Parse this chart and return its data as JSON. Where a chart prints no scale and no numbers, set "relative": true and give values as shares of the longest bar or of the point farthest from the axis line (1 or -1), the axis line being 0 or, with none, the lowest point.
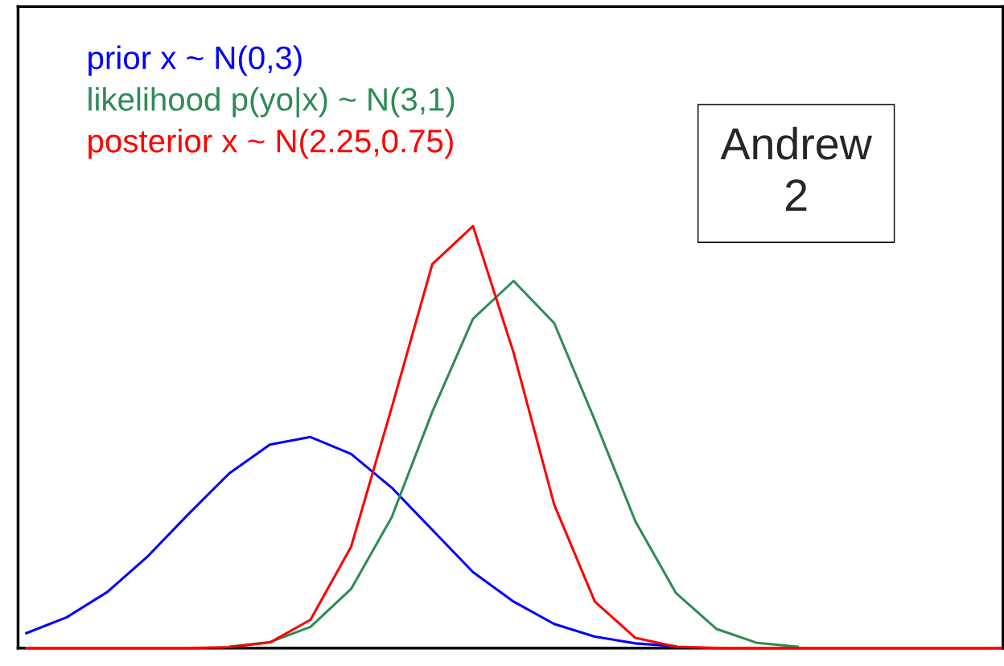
{
  "chart_data": {
    "type": "line",
    "relative": true,
    "legend": "top left",
    "marker": "none",
    "line_style": "solid",
    "categories": [
      null,
      null,
      null,
      null,
      null,
      null,
      null,
      null,
      null,
      null,
      null,
      null,
      null,
      null,
      null,
      null,
      null,
      null,
      null,
      null,
      null,
      null,
      null,
      null,
      null
    ],
    "series": [
      {
        "name": "prior x ~ N(0,3)",
        "color": "#0000ff",
        "values": [
          0.035,
          0.073,
          0.133,
          0.218,
          0.318,
          0.414,
          0.482,
          0.5,
          0.46,
          0.38,
          0.28,
          0.18,
          0.11,
          0.057,
          0.027,
          0.011,
          0.004,
          null,
          null,
          null,
          null,
          null,
          null,
          null,
          null
        ]
      },
      {
        "name": "likelihood p(yo|x) ~ N(3,1)",
        "color": "#2e8b57",
        "values": [
          null,
          null,
          null,
          null,
          null,
          0.003,
          0.014,
          0.05,
          0.14,
          0.31,
          0.56,
          0.78,
          0.87,
          0.77,
          0.54,
          0.3,
          0.13,
          0.045,
          0.012,
          0.003,
          null,
          null,
          null,
          null,
          null
        ]
      },
      {
        "name": "posterior x ~ N(2.25,0.75)",
        "color": "#ff0000",
        "values": [
          0,
          0,
          0,
          0,
          0,
          0.002,
          0.013,
          0.067,
          0.24,
          0.57,
          0.91,
          1.0,
          0.7,
          0.34,
          0.11,
          0.024,
          0.003,
          0,
          0,
          0,
          0,
          0,
          0,
          0,
          0
        ]
      }
    ],
    "annotations": [
      "Andrew\n2"
    ]
  }
}
